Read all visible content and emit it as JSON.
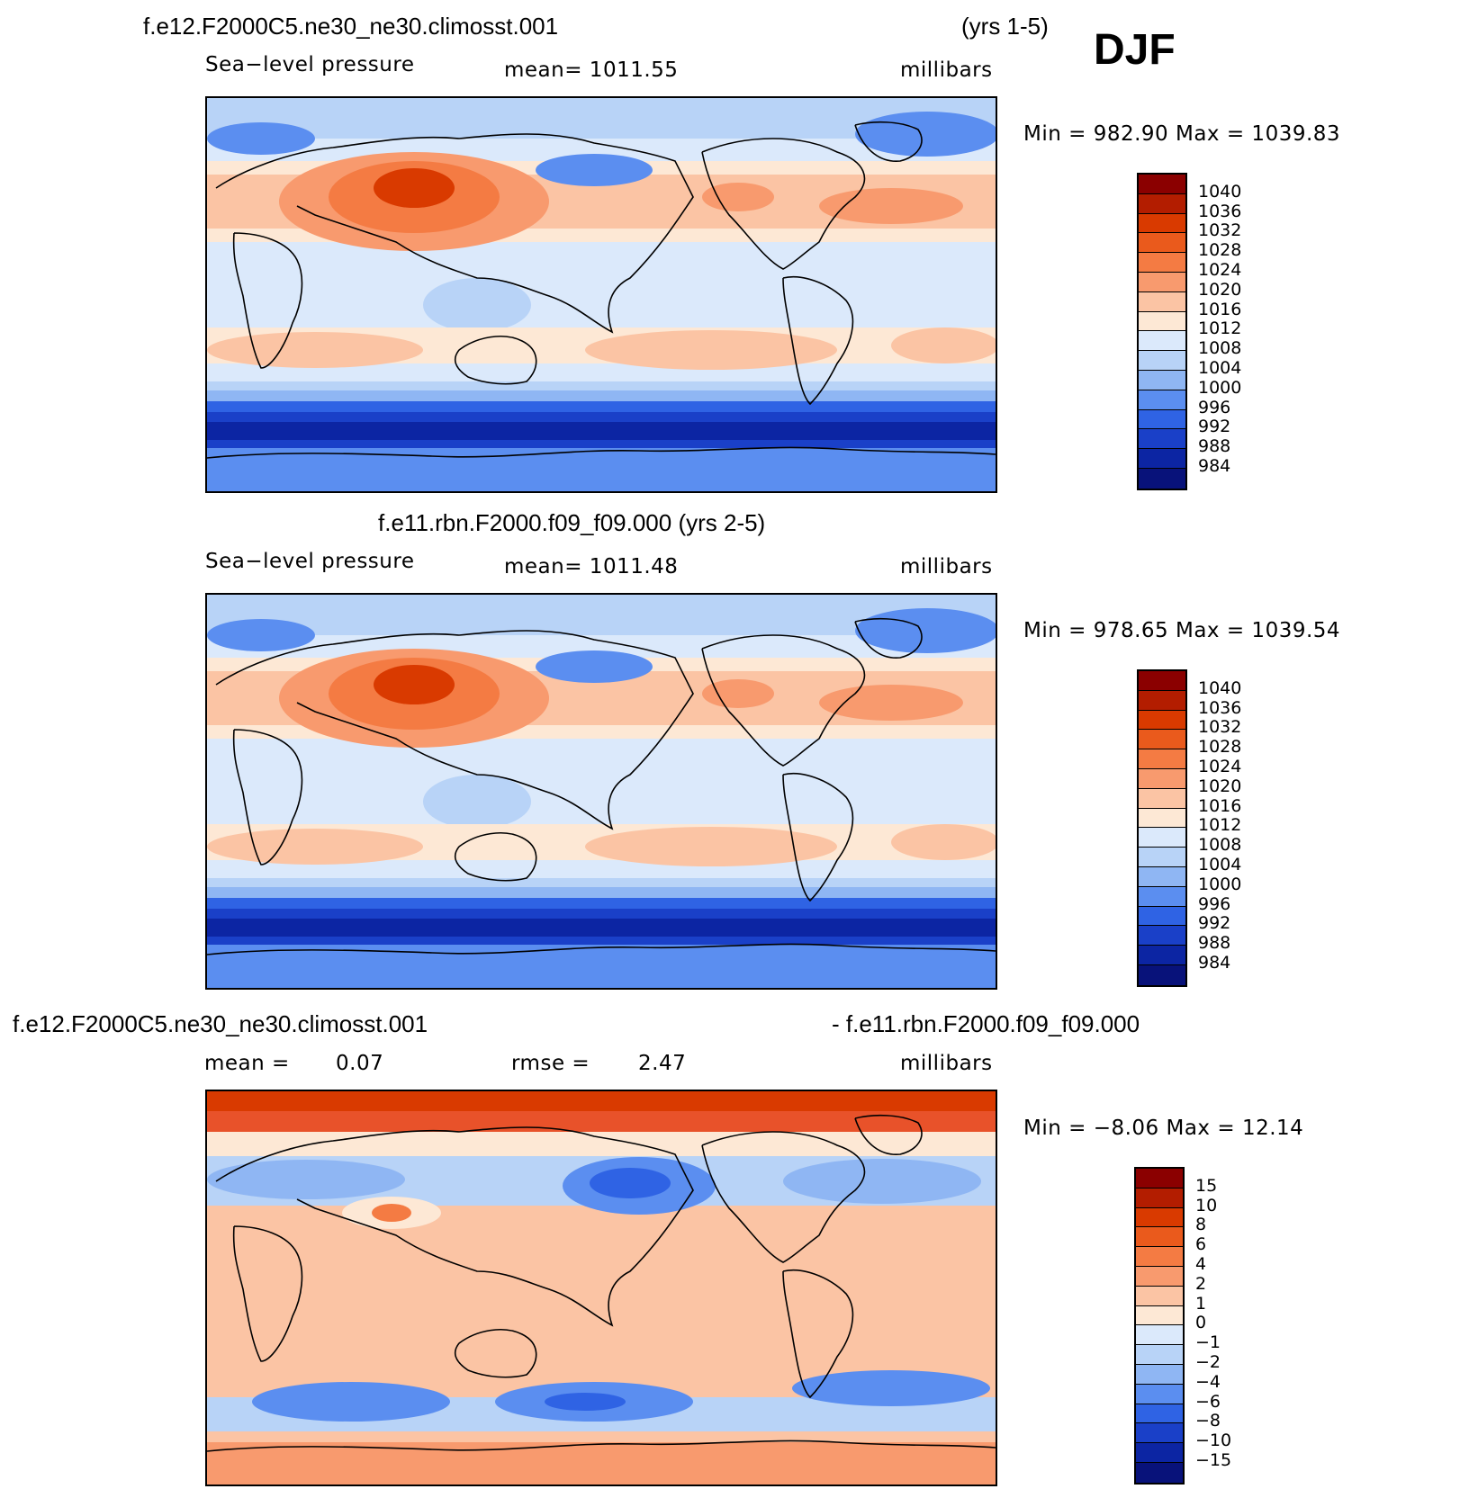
{
  "header": {
    "season": "DJF"
  },
  "panels": [
    {
      "title_left": "f.e12.F2000C5.ne30_ne30.climosst.001",
      "title_right": "(yrs 1-5)",
      "label_left": "Sea−level pressure",
      "mean_text": "mean=  1011.55",
      "units": "millibars",
      "minmax": "Min  =  982.90  Max  =  1039.83",
      "colorbar": {
        "labels": [
          "1040",
          "1036",
          "1032",
          "1028",
          "1024",
          "1020",
          "1016",
          "1012",
          "1008",
          "1004",
          "1000",
          "996",
          "992",
          "988",
          "984"
        ],
        "colors": [
          "#8b0000",
          "#b31d00",
          "#d93a00",
          "#ea5a1c",
          "#f47b43",
          "#f89a6e",
          "#fbc4a4",
          "#fde8d5",
          "#dbe9fb",
          "#b8d3f7",
          "#8fb6f3",
          "#5b8ef0",
          "#2f63e4",
          "#1a40c8",
          "#0c25a3",
          "#08127a"
        ]
      },
      "map_style": "slp1"
    },
    {
      "title_left": "f.e11.rbn.F2000.f09_f09.000 (yrs 2-5)",
      "label_left": "Sea−level pressure",
      "mean_text": "mean=  1011.48",
      "units": "millibars",
      "minmax": "Min  =  978.65  Max  =  1039.54",
      "colorbar": {
        "labels": [
          "1040",
          "1036",
          "1032",
          "1028",
          "1024",
          "1020",
          "1016",
          "1012",
          "1008",
          "1004",
          "1000",
          "996",
          "992",
          "988",
          "984"
        ],
        "colors": [
          "#8b0000",
          "#b31d00",
          "#d93a00",
          "#ea5a1c",
          "#f47b43",
          "#f89a6e",
          "#fbc4a4",
          "#fde8d5",
          "#dbe9fb",
          "#b8d3f7",
          "#8fb6f3",
          "#5b8ef0",
          "#2f63e4",
          "#1a40c8",
          "#0c25a3",
          "#08127a"
        ]
      },
      "map_style": "slp2"
    },
    {
      "title_left": "f.e12.F2000C5.ne30_ne30.climosst.001",
      "title_right": "- f.e11.rbn.F2000.f09_f09.000",
      "mean_label": "mean =",
      "mean_value": "0.07",
      "rmse_label": "rmse =",
      "rmse_value": "2.47",
      "units": "millibars",
      "minmax": "Min  =   −8.06  Max  =    12.14",
      "colorbar": {
        "labels": [
          "15",
          "10",
          "8",
          "6",
          "4",
          "2",
          "1",
          "0",
          "−1",
          "−2",
          "−4",
          "−6",
          "−8",
          "−10",
          "−15"
        ],
        "colors": [
          "#8b0000",
          "#b31d00",
          "#d93a00",
          "#ea5a1c",
          "#f47b43",
          "#f89a6e",
          "#fbc4a4",
          "#fde8d5",
          "#dbe9fb",
          "#b8d3f7",
          "#8fb6f3",
          "#5b8ef0",
          "#2f63e4",
          "#1a40c8",
          "#0c25a3",
          "#08127a"
        ]
      },
      "map_style": "diff"
    }
  ]
}
